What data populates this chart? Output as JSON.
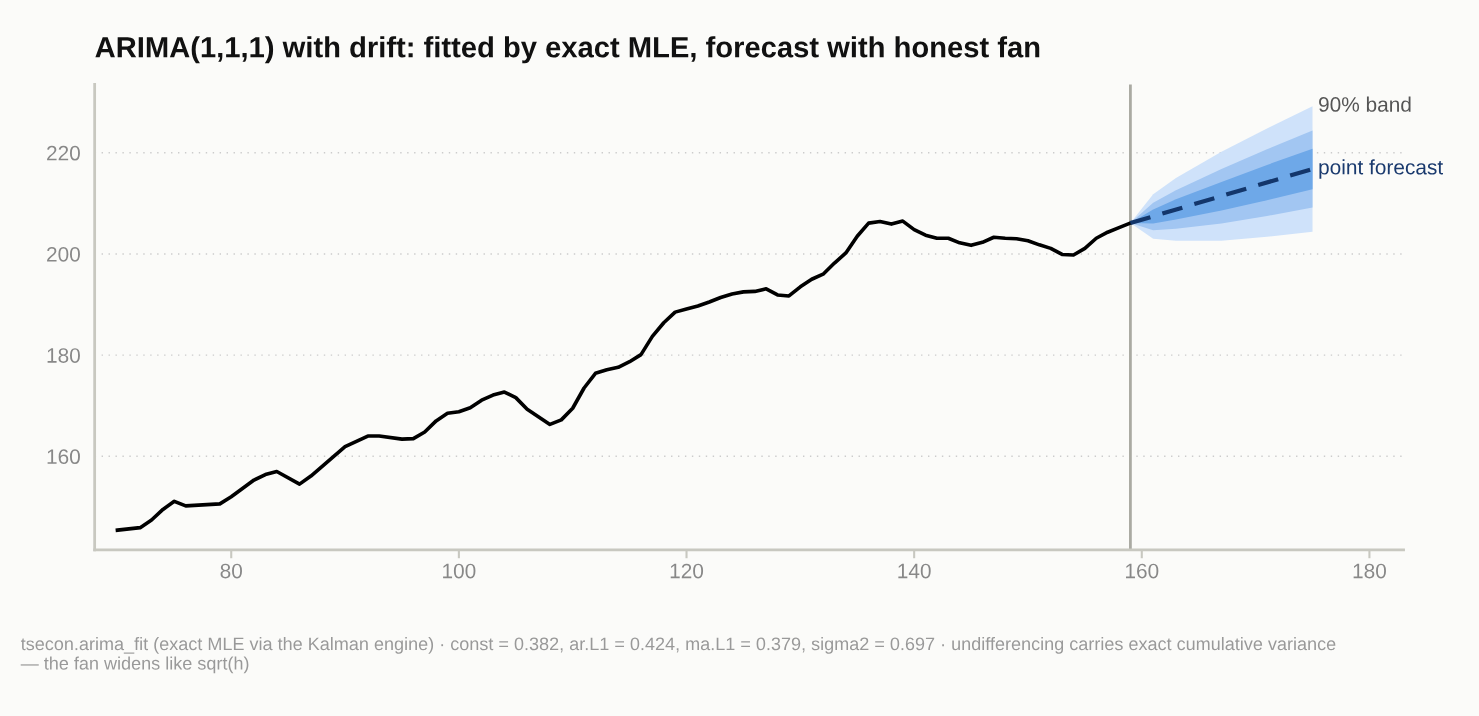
{
  "chart_data": {
    "type": "line",
    "title": "ARIMA(1,1,1) with drift: fitted by exact MLE, forecast with honest fan",
    "series": [
      {
        "type": "line",
        "color": "#cfe2fa",
        "x": [
          159,
          161,
          163,
          167,
          171,
          175
        ],
        "values": [
          null,
          null,
          null,
          null,
          null,
          null
        ],
        "lower": [
          206.1,
          203.0,
          202.6,
          202.6,
          203.4,
          204.4
        ],
        "upper": [
          206.1,
          211.8,
          215.0,
          220.2,
          224.8,
          229.2
        ]
      },
      {
        "type": "line",
        "color": "#a2c6f2",
        "x": [
          159,
          161,
          163,
          167,
          171,
          175
        ],
        "values": [
          null,
          null,
          null,
          null,
          null,
          null
        ],
        "lower": [
          206.1,
          204.7,
          205.0,
          206.0,
          207.5,
          209.2
        ],
        "upper": [
          206.1,
          210.1,
          212.6,
          216.8,
          220.7,
          224.4
        ]
      },
      {
        "type": "line",
        "color": "#6ea8e8",
        "x": [
          159,
          161,
          163,
          167,
          171,
          175
        ],
        "values": [
          null,
          null,
          null,
          null,
          null,
          null
        ],
        "lower": [
          206.1,
          206.0,
          206.8,
          208.6,
          210.6,
          212.8
        ],
        "upper": [
          206.1,
          208.8,
          210.8,
          214.2,
          217.6,
          220.8
        ]
      },
      {
        "type": "line",
        "color": "#000000",
        "line_style": "solid",
        "x": [
          70,
          72,
          73,
          74,
          75,
          76,
          79,
          80,
          82,
          83,
          84,
          86,
          87,
          90,
          92,
          93,
          95,
          96,
          97,
          98,
          99,
          100,
          101,
          102,
          103,
          104,
          105,
          106,
          108,
          109,
          110,
          111,
          112,
          113,
          114,
          115,
          116,
          117,
          118,
          119,
          120,
          121,
          122,
          123,
          124,
          125,
          126,
          127,
          128,
          129,
          130,
          131,
          132,
          133,
          134,
          135,
          136,
          137,
          138,
          139,
          140,
          141,
          142,
          143,
          144,
          145,
          146,
          147,
          148,
          149,
          150,
          151,
          152,
          153,
          154,
          155,
          156,
          157,
          158,
          159
        ],
        "values": [
          145.4,
          145.9,
          147.4,
          149.5,
          151.1,
          150.2,
          150.6,
          152.0,
          155.3,
          156.4,
          157.0,
          154.5,
          156.1,
          161.9,
          164.0,
          164.0,
          163.4,
          163.5,
          164.8,
          167.0,
          168.5,
          168.8,
          169.6,
          171.1,
          172.1,
          172.7,
          171.6,
          169.3,
          166.3,
          167.2,
          169.5,
          173.5,
          176.4,
          177.1,
          177.6,
          178.7,
          180.1,
          183.7,
          186.4,
          188.5,
          189.1,
          189.7,
          190.5,
          191.4,
          192.1,
          192.5,
          192.6,
          193.1,
          191.9,
          191.7,
          193.5,
          195.0,
          196.0,
          198.2,
          200.2,
          203.5,
          206.1,
          206.4,
          205.9,
          206.5,
          204.8,
          203.7,
          203.1,
          203.1,
          202.2,
          201.7,
          202.3,
          203.3,
          203.1,
          203.0,
          202.6,
          201.8,
          201.1,
          199.9,
          199.8,
          201.1,
          203.1,
          204.3,
          205.2,
          206.1
        ]
      },
      {
        "type": "line",
        "color": "#13366b",
        "line_style": "dashed",
        "x": [
          159,
          175
        ],
        "values": [
          206.1,
          216.8
        ]
      }
    ],
    "xlim": [
      68,
      183
    ],
    "ylim": [
      141.5,
      233.5
    ],
    "xticks": [
      80,
      100,
      120,
      140,
      160,
      180
    ],
    "yticks": [
      160,
      180,
      200,
      220
    ],
    "grid": "y",
    "ref_lines": [
      {
        "axis": "x",
        "value": 159,
        "color": "#aaaaa2",
        "line_style": "solid"
      }
    ],
    "annotations": [
      {
        "text": "90% band",
        "x": 175,
        "y": 229.2
      },
      {
        "text": "point forecast",
        "x": 175,
        "y": 216.8
      },
      "tsecon.arima_fit (exact MLE via the Kalman engine) · const = 0.382, ar.L1 = 0.424, ma.L1 = 0.379, sigma2 = 0.697 · undifferencing carries exact cumulative variance — the fan widens like sqrt(h)"
    ]
  }
}
